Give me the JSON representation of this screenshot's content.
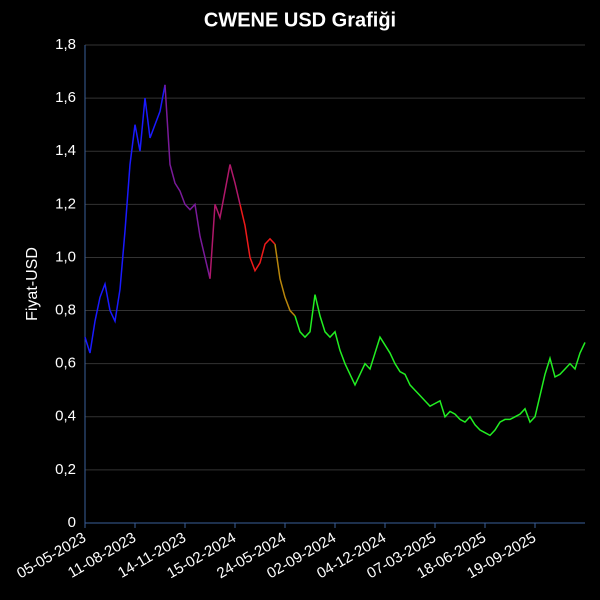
{
  "chart_data": {
    "type": "line",
    "title": "CWENE USD Grafiği",
    "y_label": "Fiyat-USD",
    "categories": [
      "05-05-2023",
      null,
      null,
      null,
      null,
      null,
      null,
      null,
      null,
      null,
      "11-08-2023",
      null,
      null,
      null,
      null,
      null,
      null,
      null,
      null,
      null,
      "14-11-2023",
      null,
      null,
      null,
      null,
      null,
      null,
      null,
      null,
      null,
      "15-02-2024",
      null,
      null,
      null,
      null,
      null,
      null,
      null,
      null,
      null,
      "24-05-2024",
      null,
      null,
      null,
      null,
      null,
      null,
      null,
      null,
      null,
      "02-09-2024",
      null,
      null,
      null,
      null,
      null,
      null,
      null,
      null,
      null,
      "04-12-2024",
      null,
      null,
      null,
      null,
      null,
      null,
      null,
      null,
      null,
      "07-03-2025",
      null,
      null,
      null,
      null,
      null,
      null,
      null,
      null,
      null,
      "18-06-2025",
      null,
      null,
      null,
      null,
      null,
      null,
      null,
      null,
      null,
      "19-09-2025",
      null,
      null,
      null,
      null,
      null,
      null,
      null,
      null,
      null,
      null
    ],
    "values": [
      0.7,
      0.64,
      0.76,
      0.85,
      0.9,
      0.8,
      0.76,
      0.88,
      1.1,
      1.35,
      1.5,
      1.4,
      1.6,
      1.45,
      1.5,
      1.55,
      1.65,
      1.35,
      1.28,
      1.25,
      1.2,
      1.18,
      1.2,
      1.08,
      1.0,
      0.92,
      1.2,
      1.15,
      1.25,
      1.35,
      1.28,
      1.2,
      1.12,
      1.0,
      0.95,
      0.98,
      1.05,
      1.07,
      1.05,
      0.92,
      0.85,
      0.8,
      0.78,
      0.72,
      0.7,
      0.72,
      0.86,
      0.78,
      0.72,
      0.7,
      0.72,
      0.65,
      0.6,
      0.56,
      0.52,
      0.56,
      0.6,
      0.58,
      0.64,
      0.7,
      0.67,
      0.64,
      0.6,
      0.57,
      0.56,
      0.52,
      0.5,
      0.48,
      0.46,
      0.44,
      0.45,
      0.46,
      0.4,
      0.42,
      0.41,
      0.39,
      0.38,
      0.4,
      0.37,
      0.35,
      0.34,
      0.33,
      0.35,
      0.38,
      0.39,
      0.39,
      0.4,
      0.41,
      0.43,
      0.38,
      0.4,
      0.48,
      0.56,
      0.62,
      0.55,
      0.56,
      0.58,
      0.6,
      0.58,
      0.64,
      0.68
    ],
    "colors": [
      "#1a1aff",
      "#1a1aff",
      "#1a1aff",
      "#1a1aff",
      "#1a1aff",
      "#1a1aff",
      "#1a1aff",
      "#1a1aff",
      "#1a1aff",
      "#1a1aff",
      "#1a1aff",
      "#1a1aff",
      "#1a1aff",
      "#1a1aff",
      "#1a1aff",
      "#1a1aff",
      "#1a1aff",
      "#7a1a9a",
      "#7a1a9a",
      "#7a1a9a",
      "#7a1a9a",
      "#7a1a9a",
      "#7a1a9a",
      "#7a1a9a",
      "#7a1a9a",
      "#7a1a9a",
      "#b0186a",
      "#b0186a",
      "#b0186a",
      "#b0186a",
      "#b0186a",
      "#b0186a",
      "#ee1a1a",
      "#ee1a1a",
      "#ee1a1a",
      "#ee1a1a",
      "#ee1a1a",
      "#ee1a1a",
      "#ee1a1a",
      "#b8860b",
      "#b8860b",
      "#b8860b",
      "#b8860b",
      "#22ee22",
      "#22ee22",
      "#22ee22",
      "#22ee22",
      "#22ee22",
      "#22ee22",
      "#22ee22",
      "#22ee22",
      "#22ee22",
      "#22ee22",
      "#22ee22",
      "#22ee22",
      "#22ee22",
      "#22ee22",
      "#22ee22",
      "#22ee22",
      "#22ee22",
      "#22ee22",
      "#22ee22",
      "#22ee22",
      "#22ee22",
      "#22ee22",
      "#22ee22",
      "#22ee22",
      "#22ee22",
      "#22ee22",
      "#22ee22",
      "#22ee22",
      "#22ee22",
      "#22ee22",
      "#22ee22",
      "#22ee22",
      "#22ee22",
      "#22ee22",
      "#22ee22",
      "#22ee22",
      "#22ee22",
      "#22ee22",
      "#22ee22",
      "#22ee22",
      "#22ee22",
      "#22ee22",
      "#22ee22",
      "#22ee22",
      "#22ee22",
      "#22ee22",
      "#22ee22",
      "#22ee22",
      "#22ee22",
      "#22ee22",
      "#22ee22",
      "#22ee22",
      "#22ee22",
      "#22ee22",
      "#22ee22",
      "#22ee22",
      "#22ee22",
      "#22ee22"
    ],
    "ylim": [
      0,
      1.8
    ],
    "yticks": [
      0,
      {
        "value": 0.2,
        "label": "0,2"
      },
      {
        "value": 0.4,
        "label": "0,4"
      },
      {
        "value": 0.6,
        "label": "0,6"
      },
      {
        "value": 0.8,
        "label": "0,8"
      },
      {
        "value": 1.0,
        "label": "1,0"
      },
      {
        "value": 1.2,
        "label": "1,2"
      },
      {
        "value": 1.4,
        "label": "1,4"
      },
      {
        "value": 1.6,
        "label": "1,6"
      },
      {
        "value": 1.8,
        "label": "1,8"
      }
    ],
    "grid": true
  }
}
